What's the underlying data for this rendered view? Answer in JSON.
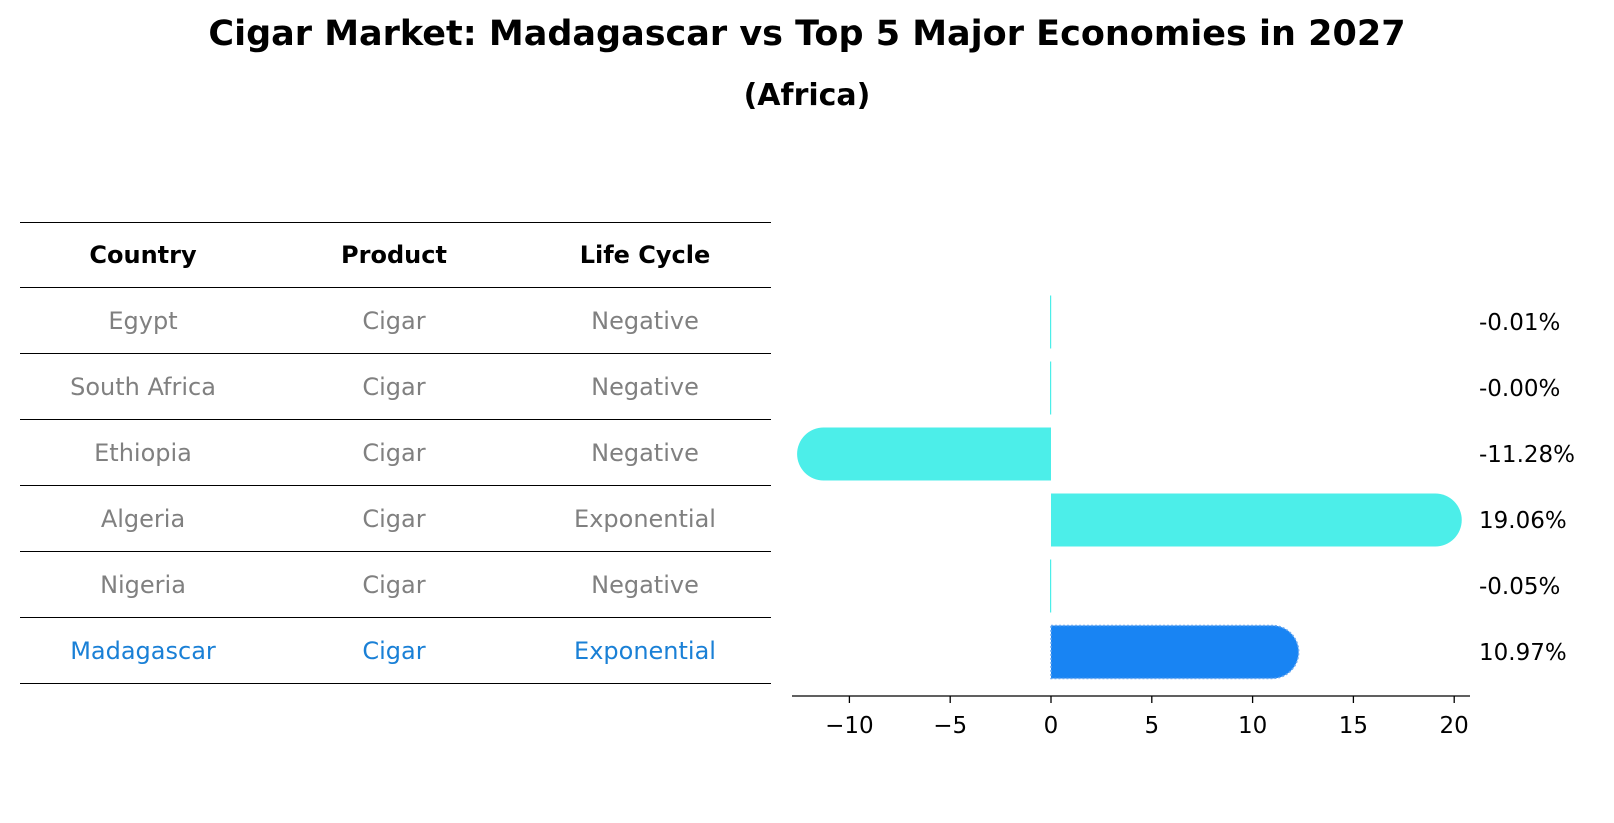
{
  "title": "Cigar Market: Madagascar vs Top 5 Major Economies in 2027",
  "subtitle": "(Africa)",
  "table": {
    "columns": [
      "Country",
      "Product",
      "Life Cycle"
    ],
    "rows": [
      {
        "country": "Egypt",
        "product": "Cigar",
        "life_cycle": "Negative"
      },
      {
        "country": "South Africa",
        "product": "Cigar",
        "life_cycle": "Negative"
      },
      {
        "country": "Ethiopia",
        "product": "Cigar",
        "life_cycle": "Negative"
      },
      {
        "country": "Algeria",
        "product": "Cigar",
        "life_cycle": "Exponential"
      },
      {
        "country": "Nigeria",
        "product": "Cigar",
        "life_cycle": "Negative"
      },
      {
        "country": "Madagascar",
        "product": "Cigar",
        "life_cycle": "Exponential"
      }
    ],
    "highlight_row": "Madagascar"
  },
  "colors": {
    "bar": "#4ceee9",
    "highlight_bar": "#1884f3",
    "muted_text": "#808080",
    "highlight_text": "#1a80d6"
  },
  "chart_data": {
    "type": "bar",
    "orientation": "horizontal",
    "categories": [
      "Egypt",
      "South Africa",
      "Ethiopia",
      "Algeria",
      "Nigeria",
      "Madagascar"
    ],
    "values": [
      -0.01,
      -0.0,
      -11.28,
      19.06,
      -0.05,
      10.97
    ],
    "value_labels": [
      "-0.01%",
      "-0.00%",
      "-11.28%",
      "19.06%",
      "-0.05%",
      "10.97%"
    ],
    "highlight": "Madagascar",
    "xlim": [
      -13,
      20.5
    ],
    "xticks": [
      -10,
      -5,
      0,
      5,
      10,
      15,
      20
    ],
    "xtick_labels": [
      "−10",
      "−5",
      "0",
      "5",
      "10",
      "15",
      "20"
    ],
    "grid": false
  }
}
